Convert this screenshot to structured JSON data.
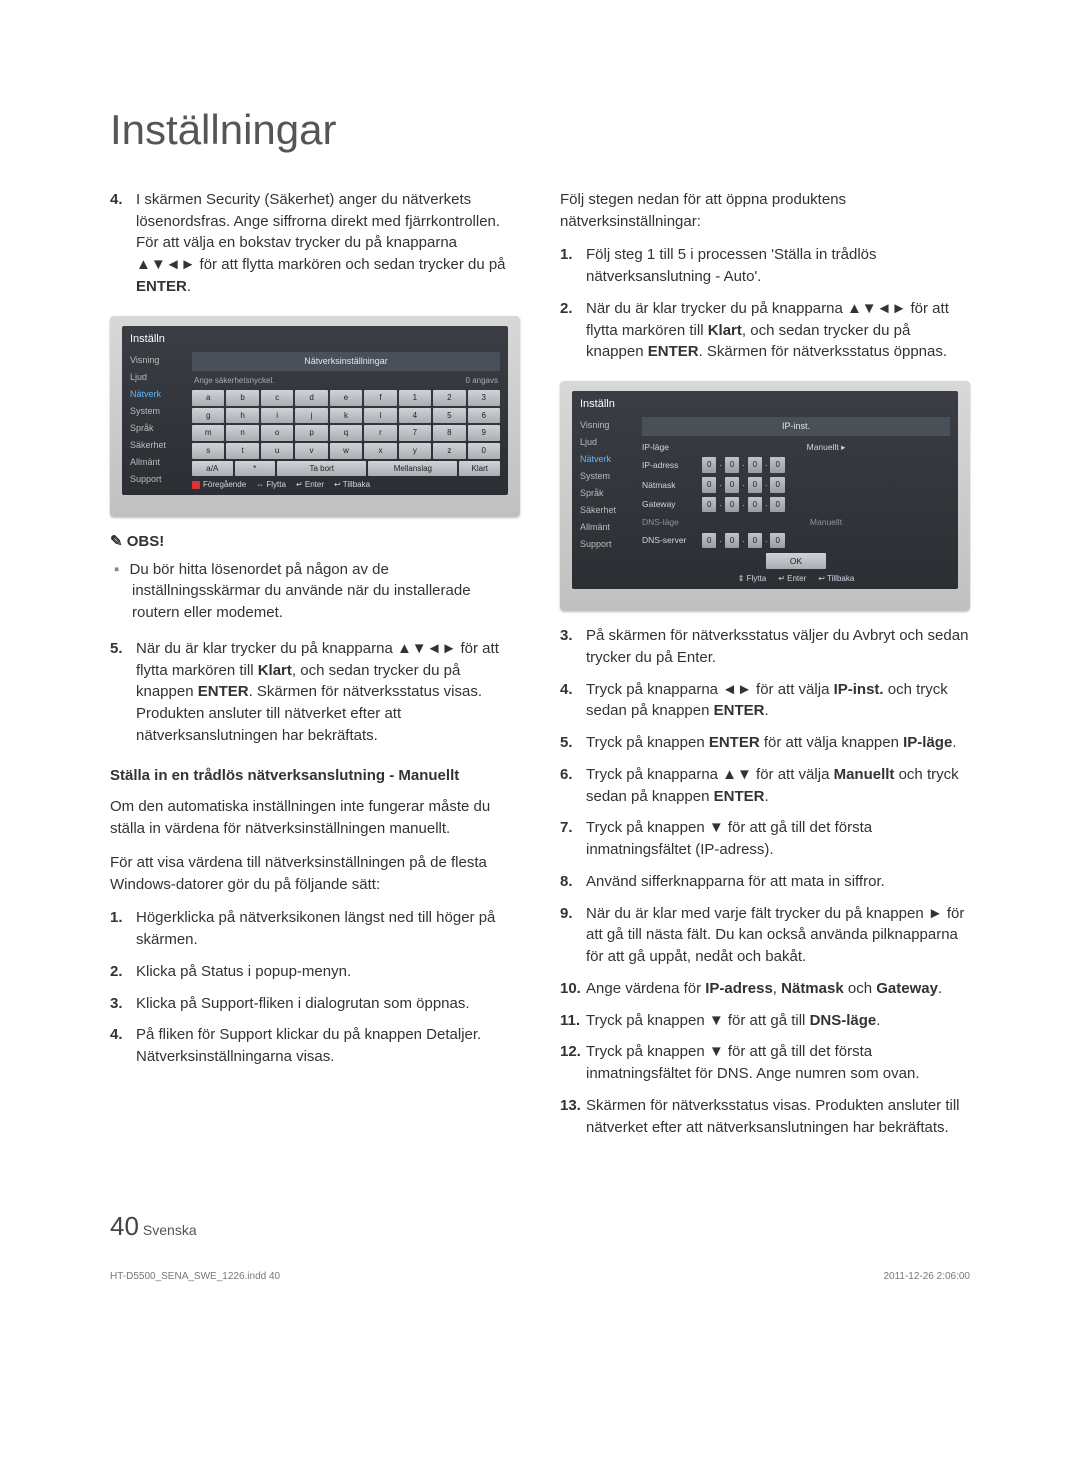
{
  "title": "Inställningar",
  "left": {
    "item4": {
      "num": "4.",
      "p1": "I skärmen Security (Säkerhet) anger du nätverkets lösenordsfras. Ange siffrorna direkt med fjärrkontrollen.",
      "p2_a": "För att välja en bokstav trycker du på knapparna ▲▼◄► för att flytta markören och sedan trycker du på ",
      "p2_b": "ENTER",
      "p2_c": "."
    },
    "tv1": {
      "frameTitle": "Inställn",
      "side": [
        "Visning",
        "Ljud",
        "Nätverk",
        "System",
        "Språk",
        "Säkerhet",
        "Allmänt",
        "Support"
      ],
      "headerBar": "Nätverksinställningar",
      "subLeft": "Ange säkerhetsnyckel.",
      "subRight": "0 angavs",
      "row1": [
        "a",
        "b",
        "c",
        "d",
        "e",
        "f",
        "1",
        "2",
        "3"
      ],
      "row2": [
        "g",
        "h",
        "i",
        "j",
        "k",
        "l",
        "4",
        "5",
        "6"
      ],
      "row3": [
        "m",
        "n",
        "o",
        "p",
        "q",
        "r",
        "7",
        "8",
        "9"
      ],
      "row4": [
        "s",
        "t",
        "u",
        "v",
        "w",
        "x",
        "y",
        "z",
        "0"
      ],
      "bottom": [
        "a/A",
        "*",
        "Ta bort",
        "Mellanslag",
        "Klart"
      ],
      "footer": [
        "Föregående",
        "⇔ Flytta",
        "↵ Enter",
        "↩ Tillbaka"
      ]
    },
    "obsLabel": "OBS!",
    "obsBullet": "Du bör hitta lösenordet på någon av de inställningsskärmar du använde när du installerade routern eller modemet.",
    "item5": {
      "num": "5.",
      "a": "När du är klar trycker du på knapparna ▲▼◄► för att flytta markören till ",
      "b": "Klart",
      "c": ", och sedan trycker du på knappen ",
      "d": "ENTER",
      "e": ". Skärmen för nätverksstatus visas. Produkten ansluter till nätverket efter att nätverksanslutningen har bekräftats."
    },
    "sub": "Ställa in en trådlös nätverksanslutning - Manuellt",
    "para1": "Om den automatiska inställningen inte fungerar måste du ställa in värdena för nätverksinställningen manuellt.",
    "para2": "För att visa värdena till nätverksinställningen på de flesta Windows-datorer gör du på följande sätt:",
    "w1": {
      "num": "1.",
      "t": "Högerklicka på nätverksikonen längst ned till höger på skärmen."
    },
    "w2": {
      "num": "2.",
      "t": "Klicka på Status i popup-menyn."
    },
    "w3": {
      "num": "3.",
      "t": "Klicka på Support-fliken i dialogrutan som öppnas."
    },
    "w4": {
      "num": "4.",
      "t": "På fliken för Support klickar du på knappen Detaljer.\nNätverksinställningarna visas."
    }
  },
  "right": {
    "intro": "Följ stegen nedan för att öppna produktens nätverksinställningar:",
    "r1": {
      "num": "1.",
      "t": "Följ steg 1 till 5 i processen 'Ställa in trådlös nätverksanslutning - Auto'."
    },
    "r2": {
      "num": "2.",
      "a": "När du är klar trycker du på knapparna ▲▼◄► för att flytta markören till ",
      "b": "Klart",
      "c": ", och sedan trycker du på knappen ",
      "d": "ENTER",
      "e": ". Skärmen för nätverksstatus öppnas."
    },
    "tv2": {
      "frameTitle": "Inställn",
      "side": [
        "Visning",
        "Ljud",
        "Nätverk",
        "System",
        "Språk",
        "Säkerhet",
        "Allmänt",
        "Support"
      ],
      "headerBar": "IP-inst.",
      "rows": [
        {
          "lbl": "IP-läge",
          "val": "Manuellt",
          "arrow": true
        },
        {
          "lbl": "IP-adress",
          "oct": [
            "0",
            "0",
            "0",
            "0"
          ]
        },
        {
          "lbl": "Nätmask",
          "oct": [
            "0",
            "0",
            "0",
            "0"
          ]
        },
        {
          "lbl": "Gateway",
          "oct": [
            "0",
            "0",
            "0",
            "0"
          ]
        },
        {
          "lbl": "DNS-läge",
          "val": "Manuellt",
          "dim": true
        },
        {
          "lbl": "DNS-server",
          "oct": [
            "0",
            "0",
            "0",
            "0"
          ]
        }
      ],
      "ok": "OK",
      "footer": [
        "⇕ Flytta",
        "↵ Enter",
        "↩ Tillbaka"
      ]
    },
    "r3": {
      "num": "3.",
      "t": "På skärmen för nätverksstatus väljer du Avbryt och sedan trycker du på Enter."
    },
    "r4": {
      "num": "4.",
      "a": "Tryck på knapparna ◄► för att välja ",
      "b": "IP-inst.",
      "c": " och tryck sedan på knappen ",
      "d": "ENTER",
      "e": "."
    },
    "r5": {
      "num": "5.",
      "a": "Tryck på knappen ",
      "b": "ENTER",
      "c": " för att välja knappen ",
      "d": "IP-läge",
      "e": "."
    },
    "r6": {
      "num": "6.",
      "a": "Tryck på knapparna ▲▼ för att välja ",
      "b": "Manuellt",
      "c": " och tryck sedan på knappen ",
      "d": "ENTER",
      "e": "."
    },
    "r7": {
      "num": "7.",
      "t": "Tryck på knappen ▼ för att gå till det första inmatningsfältet (IP-adress)."
    },
    "r8": {
      "num": "8.",
      "t": "Använd sifferknapparna för att mata in siffror."
    },
    "r9": {
      "num": "9.",
      "t": "När du är klar med varje fält trycker du på knappen ► för att gå till nästa fält. Du kan också använda pilknapparna för att gå uppåt, nedåt och bakåt."
    },
    "r10": {
      "num": "10.",
      "a": "Ange värdena för ",
      "b": "IP-adress",
      "c": ", ",
      "d": "Nätmask",
      "e": " och ",
      "f": "Gateway",
      "g": "."
    },
    "r11": {
      "num": "11.",
      "a": "Tryck på knappen ▼ för att gå till ",
      "b": "DNS-läge",
      "c": "."
    },
    "r12": {
      "num": "12.",
      "t": "Tryck på knappen ▼ för att gå till det första inmatningsfältet för DNS. Ange numren som ovan."
    },
    "r13": {
      "num": "13.",
      "t": "Skärmen för nätverksstatus visas. Produkten ansluter till nätverket efter att nätverksanslutningen har bekräftats."
    }
  },
  "footer": {
    "pageNum": "40",
    "lang": "Svenska",
    "printLeft": "HT-D5500_SENA_SWE_1226.indd   40",
    "printRight": "2011-12-26   2:06:00"
  }
}
